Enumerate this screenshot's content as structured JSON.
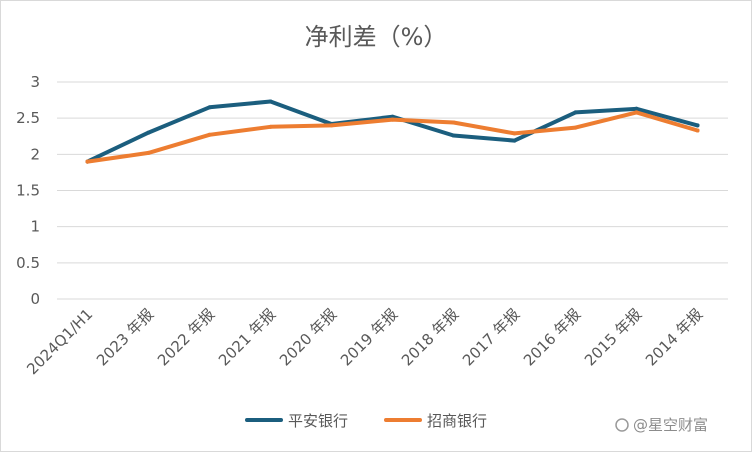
{
  "chart_data": {
    "type": "line",
    "title": "净利差（%）",
    "categories": [
      "2024Q1/H1",
      "2023 年报",
      "2022 年报",
      "2021 年报",
      "2020 年报",
      "2019 年报",
      "2018 年报",
      "2017 年报",
      "2016 年报",
      "2015 年报",
      "2014 年报"
    ],
    "ylim": [
      0,
      3
    ],
    "yticks": [
      "0",
      "0.5",
      "1",
      "1.5",
      "2",
      "2.5",
      "3"
    ],
    "grid": true,
    "legend_position": "bottom",
    "series": [
      {
        "name": "平安银行",
        "color": "#1b5e7e",
        "values": [
          1.9,
          2.3,
          2.65,
          2.73,
          2.42,
          2.52,
          2.26,
          2.19,
          2.58,
          2.63,
          2.4
        ]
      },
      {
        "name": "招商银行",
        "color": "#ed7d31",
        "values": [
          1.9,
          2.02,
          2.27,
          2.38,
          2.4,
          2.48,
          2.44,
          2.29,
          2.37,
          2.58,
          2.33
        ]
      }
    ]
  },
  "watermark": "@星空财富"
}
